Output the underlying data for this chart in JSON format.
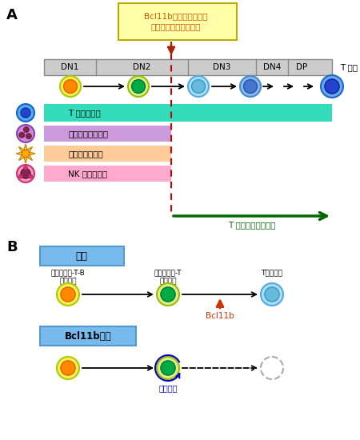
{
  "bg_color": "#ffffff",
  "label_A": "A",
  "label_B": "B",
  "checkpoint_text": "Bcl11bによって駆動さ\nれるチェックポイント",
  "checkpoint_box_color": "#ffffaa",
  "checkpoint_box_edge": "#bbaa00",
  "checkpoint_text_color": "#cc5500",
  "stages": [
    "DN1",
    "DN2",
    "DN3",
    "DN4",
    "DP"
  ],
  "stage_box_color": "#cccccc",
  "stage_box_edge": "#888888",
  "dashed_line_color": "#cc0000",
  "t_cell_bar_color": "#33ddbb",
  "myeloid_bar_color": "#cc99dd",
  "dc_bar_color": "#ffcc99",
  "nk_bar_color": "#ffaacc",
  "t_label": "T 細胞分化能",
  "myeloid_label": "ミエロイド分化能",
  "dc_label": "樹状細胞分化能",
  "nk_label": "NK 細胞分化能",
  "t_commitment_text": "T 系列への完全決定",
  "green_arrow_color": "#006600",
  "normal_box_color": "#77bbee",
  "normal_label": "正常",
  "bcl11b_label": "Bcl11b欠損",
  "cell1_label": "ミエロイド-T-B\n前駆細胞",
  "cell2_label": "ミエロイド-T\n前駆細胞",
  "cell3_label": "T前駆細胞",
  "bcl11b_gene_label": "Bcl11b",
  "bcl11b_gene_color": "#cc3300",
  "self_renewal_label": "自己複製",
  "self_renewal_color": "#0000cc"
}
